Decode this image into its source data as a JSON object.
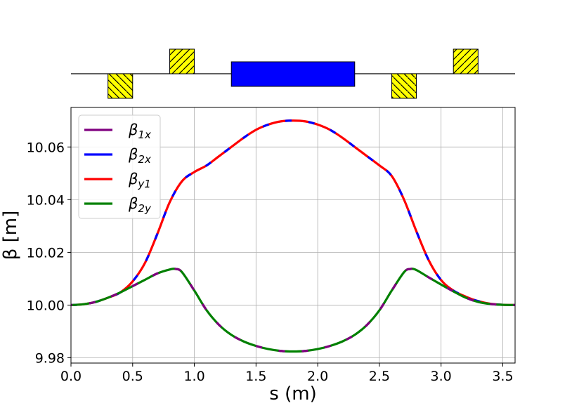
{
  "chart_data": {
    "type": "line",
    "xlabel": "s (m)",
    "ylabel": "β [m]",
    "xlim": [
      0,
      3.6
    ],
    "ylim": [
      9.978,
      10.075
    ],
    "xticks": [
      "0.0",
      "0.5",
      "1.0",
      "1.5",
      "2.0",
      "2.5",
      "3.0",
      "3.5"
    ],
    "yticks": [
      "9.98",
      "10.00",
      "10.02",
      "10.04",
      "10.06"
    ],
    "grid": true,
    "legend_placement": "top-left",
    "legend": [
      {
        "label": "β1x",
        "main": "β",
        "sub": "1x",
        "color": "#800080"
      },
      {
        "label": "β2x",
        "main": "β",
        "sub": "2x",
        "color": "#0000ff"
      },
      {
        "label": "βy1",
        "main": "β",
        "sub": "y1",
        "color": "#ff0000"
      },
      {
        "label": "β2y",
        "main": "β",
        "sub": "2y",
        "color": "#008000"
      }
    ],
    "series": [
      {
        "name": "β2x / βy1",
        "colors": [
          "#ff0000",
          "#0000ff"
        ],
        "x": [
          0.0,
          0.1,
          0.2,
          0.3,
          0.4,
          0.5,
          0.6,
          0.7,
          0.8,
          0.9,
          1.0,
          1.1,
          1.2,
          1.3,
          1.4,
          1.5,
          1.6,
          1.7,
          1.8,
          1.9,
          2.0,
          2.1,
          2.2,
          2.3,
          2.4,
          2.5,
          2.6,
          2.7,
          2.8,
          2.9,
          3.0,
          3.1,
          3.2,
          3.3,
          3.4,
          3.5,
          3.6
        ],
        "y": [
          10.0,
          10.0003,
          10.0012,
          10.0028,
          10.0048,
          10.009,
          10.016,
          10.027,
          10.039,
          10.047,
          10.0505,
          10.053,
          10.0565,
          10.06,
          10.0635,
          10.0665,
          10.0685,
          10.0697,
          10.07,
          10.0697,
          10.0685,
          10.0665,
          10.0635,
          10.06,
          10.0565,
          10.053,
          10.049,
          10.04,
          10.028,
          10.017,
          10.0095,
          10.0055,
          10.0032,
          10.0015,
          10.0005,
          10.0001,
          10.0
        ]
      },
      {
        "name": "β1x / β2y",
        "colors": [
          "#008000",
          "#800080"
        ],
        "x": [
          0.0,
          0.1,
          0.2,
          0.3,
          0.4,
          0.5,
          0.6,
          0.7,
          0.8,
          0.85,
          0.9,
          1.0,
          1.1,
          1.2,
          1.3,
          1.4,
          1.5,
          1.6,
          1.7,
          1.8,
          1.9,
          2.0,
          2.1,
          2.2,
          2.3,
          2.4,
          2.5,
          2.6,
          2.7,
          2.75,
          2.8,
          2.9,
          3.0,
          3.1,
          3.2,
          3.3,
          3.4,
          3.5,
          3.6
        ],
        "y": [
          10.0,
          10.0003,
          10.0012,
          10.0028,
          10.0048,
          10.0072,
          10.0096,
          10.012,
          10.0135,
          10.0137,
          10.0125,
          10.0055,
          9.998,
          9.9925,
          9.9887,
          9.9862,
          9.9845,
          9.9833,
          9.9826,
          9.9824,
          9.9826,
          9.9833,
          9.9845,
          9.9862,
          9.9887,
          9.9925,
          9.998,
          10.0055,
          10.0125,
          10.0137,
          10.0133,
          10.0105,
          10.0078,
          10.0052,
          10.0028,
          10.0012,
          10.0004,
          10.0001,
          10.0
        ]
      }
    ],
    "lattice": {
      "s_range": [
        0,
        3.6
      ],
      "elements": [
        {
          "kind": "quadrupole",
          "polarity": "defocusing",
          "s_start": 0.3,
          "s_end": 0.5,
          "color": "#ffff00"
        },
        {
          "kind": "quadrupole",
          "polarity": "focusing",
          "s_start": 0.8,
          "s_end": 1.0,
          "color": "#ffff00"
        },
        {
          "kind": "dipole",
          "polarity": "both",
          "s_start": 1.3,
          "s_end": 2.3,
          "color": "#0000ff"
        },
        {
          "kind": "quadrupole",
          "polarity": "defocusing",
          "s_start": 2.6,
          "s_end": 2.8,
          "color": "#ffff00"
        },
        {
          "kind": "quadrupole",
          "polarity": "focusing",
          "s_start": 3.1,
          "s_end": 3.3,
          "color": "#ffff00"
        }
      ]
    }
  }
}
